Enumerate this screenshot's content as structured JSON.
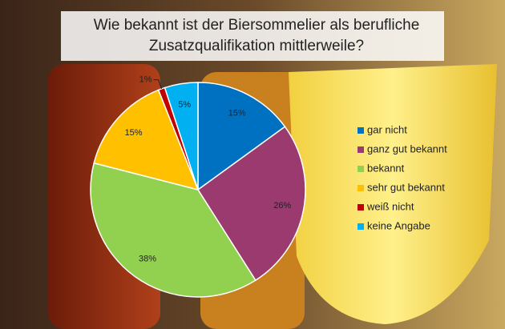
{
  "chart_data": {
    "type": "pie",
    "title": "Wie bekannt ist der Biersommelier als berufliche Zusatzqualifikation mittlerweile?",
    "categories": [
      "gar nicht",
      "ganz gut bekannt",
      "bekannt",
      "sehr gut bekannt",
      "weiß nicht",
      "keine Angabe"
    ],
    "values": [
      15,
      26,
      38,
      15,
      1,
      5
    ],
    "value_labels": [
      "15%",
      "26%",
      "38%",
      "15%",
      "1%",
      "5%"
    ],
    "colors": [
      "#0070c0",
      "#9b3a6f",
      "#92d050",
      "#ffc000",
      "#c00000",
      "#00b0f0"
    ],
    "legend": "right"
  }
}
